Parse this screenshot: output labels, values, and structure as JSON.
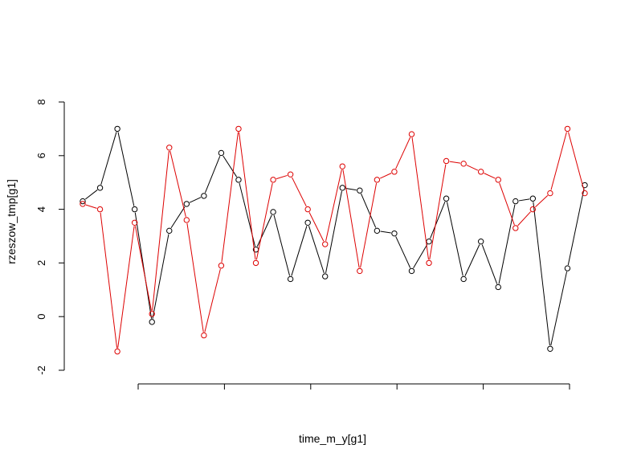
{
  "chart_data": {
    "type": "line",
    "title": "",
    "xlabel": "time_m_y[g1]",
    "ylabel": "rzeszow_tmp[g1]",
    "ylim": [
      -2,
      8
    ],
    "yticks": [
      "-2",
      "0",
      "2",
      "4",
      "6",
      "8"
    ],
    "xtick_count": 6,
    "xtick_labels": [],
    "grid": false,
    "legend": "none",
    "series": [
      {
        "color": "#000000",
        "marker": "open-circle",
        "values": [
          4.3,
          4.8,
          7.0,
          4.0,
          -0.2,
          3.2,
          4.2,
          4.5,
          6.1,
          5.1,
          2.5,
          3.9,
          1.4,
          3.5,
          1.5,
          4.8,
          4.7,
          3.2,
          3.1,
          1.7,
          2.8,
          4.4,
          1.4,
          2.8,
          1.1,
          4.3,
          4.4,
          -1.2,
          1.8,
          4.9
        ]
      },
      {
        "color": "#dd0000",
        "marker": "open-circle",
        "values": [
          4.2,
          4.0,
          -1.3,
          3.5,
          0.1,
          6.3,
          3.6,
          -0.7,
          1.9,
          7.0,
          2.0,
          5.1,
          5.3,
          4.0,
          2.7,
          5.6,
          1.7,
          5.1,
          5.4,
          6.8,
          2.0,
          5.8,
          5.7,
          5.4,
          5.1,
          3.3,
          4.0,
          4.6,
          7.0,
          4.6
        ]
      }
    ]
  }
}
